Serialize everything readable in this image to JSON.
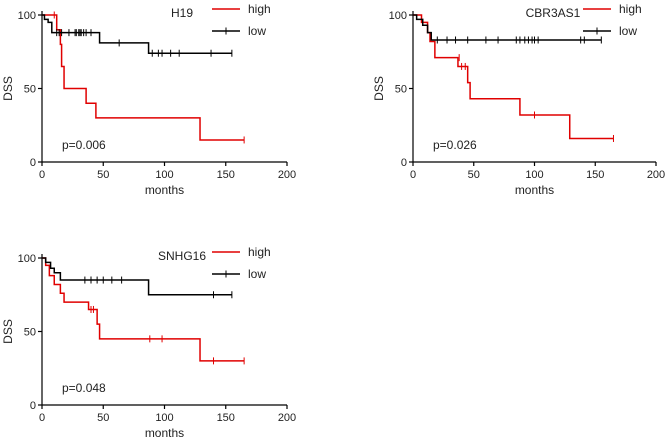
{
  "chart_data": [
    {
      "type": "line",
      "title": "H19",
      "xlabel": "months",
      "ylabel": "DSS",
      "xlim": [
        0,
        200
      ],
      "ylim": [
        0,
        100
      ],
      "xticks": [
        0,
        50,
        100,
        150,
        200
      ],
      "yticks": [
        0,
        50,
        100
      ],
      "pvalue": "p=0.006",
      "series": [
        {
          "name": "high",
          "color": "#e00000",
          "steps": [
            [
              0,
              100
            ],
            [
              7,
              100
            ],
            [
              10,
              100
            ],
            [
              12,
              90
            ],
            [
              15,
              80
            ],
            [
              16,
              65
            ],
            [
              18,
              50
            ],
            [
              35,
              50
            ],
            [
              36,
              40
            ],
            [
              43,
              40
            ],
            [
              44,
              30
            ],
            [
              128,
              30
            ],
            [
              129,
              15
            ],
            [
              165,
              15
            ]
          ],
          "censor": [
            [
              10,
              100
            ],
            [
              165,
              15
            ]
          ]
        },
        {
          "name": "low",
          "color": "#000000",
          "steps": [
            [
              0,
              100
            ],
            [
              2,
              97
            ],
            [
              5,
              95
            ],
            [
              8,
              88
            ],
            [
              46,
              88
            ],
            [
              47,
              81
            ],
            [
              86,
              81
            ],
            [
              87,
              74
            ],
            [
              155,
              74
            ]
          ],
          "censor": [
            [
              12,
              88
            ],
            [
              14,
              88
            ],
            [
              16,
              88
            ],
            [
              22,
              88
            ],
            [
              27,
              88
            ],
            [
              28,
              88
            ],
            [
              30,
              88
            ],
            [
              31,
              88
            ],
            [
              32,
              88
            ],
            [
              34,
              88
            ],
            [
              36,
              88
            ],
            [
              40,
              88
            ],
            [
              63,
              81
            ],
            [
              90,
              74
            ],
            [
              95,
              74
            ],
            [
              98,
              74
            ],
            [
              105,
              74
            ],
            [
              112,
              74
            ],
            [
              138,
              74
            ],
            [
              155,
              74
            ]
          ]
        }
      ]
    },
    {
      "type": "line",
      "title": "CBR3AS1",
      "xlabel": "months",
      "ylabel": "DSS",
      "xlim": [
        0,
        200
      ],
      "ylim": [
        0,
        100
      ],
      "xticks": [
        0,
        50,
        100,
        150,
        200
      ],
      "yticks": [
        0,
        50,
        100
      ],
      "pvalue": "p=0.026",
      "series": [
        {
          "name": "high",
          "color": "#e00000",
          "steps": [
            [
              0,
              100
            ],
            [
              5,
              100
            ],
            [
              7,
              95
            ],
            [
              12,
              88
            ],
            [
              14,
              82
            ],
            [
              18,
              71
            ],
            [
              35,
              71
            ],
            [
              37,
              65
            ],
            [
              43,
              65
            ],
            [
              45,
              54
            ],
            [
              47,
              43
            ],
            [
              87,
              43
            ],
            [
              88,
              32
            ],
            [
              128,
              32
            ],
            [
              129,
              16
            ],
            [
              165,
              16
            ]
          ],
          "censor": [
            [
              38,
              71
            ],
            [
              40,
              65
            ],
            [
              43,
              65
            ],
            [
              100,
              32
            ],
            [
              165,
              16
            ]
          ]
        },
        {
          "name": "low",
          "color": "#000000",
          "steps": [
            [
              0,
              100
            ],
            [
              3,
              97
            ],
            [
              8,
              93
            ],
            [
              12,
              88
            ],
            [
              15,
              83
            ],
            [
              155,
              83
            ]
          ],
          "censor": [
            [
              20,
              83
            ],
            [
              28,
              83
            ],
            [
              35,
              83
            ],
            [
              45,
              83
            ],
            [
              60,
              83
            ],
            [
              70,
              83
            ],
            [
              85,
              83
            ],
            [
              88,
              83
            ],
            [
              92,
              83
            ],
            [
              95,
              83
            ],
            [
              98,
              83
            ],
            [
              100,
              83
            ],
            [
              103,
              83
            ],
            [
              138,
              83
            ],
            [
              141,
              83
            ],
            [
              155,
              83
            ]
          ]
        }
      ]
    },
    {
      "type": "line",
      "title": "SNHG16",
      "xlabel": "months",
      "ylabel": "DSS",
      "xlim": [
        0,
        200
      ],
      "ylim": [
        0,
        100
      ],
      "xticks": [
        0,
        50,
        100,
        150,
        200
      ],
      "yticks": [
        0,
        50,
        100
      ],
      "pvalue": "p=0.048",
      "series": [
        {
          "name": "high",
          "color": "#e00000",
          "steps": [
            [
              0,
              100
            ],
            [
              3,
              95
            ],
            [
              6,
              88
            ],
            [
              10,
              82
            ],
            [
              15,
              76
            ],
            [
              18,
              70
            ],
            [
              36,
              70
            ],
            [
              38,
              65
            ],
            [
              44,
              65
            ],
            [
              45,
              55
            ],
            [
              47,
              45
            ],
            [
              128,
              45
            ],
            [
              129,
              30
            ],
            [
              165,
              30
            ]
          ],
          "censor": [
            [
              40,
              65
            ],
            [
              42,
              65
            ],
            [
              88,
              45
            ],
            [
              98,
              45
            ],
            [
              140,
              30
            ],
            [
              165,
              30
            ]
          ]
        },
        {
          "name": "low",
          "color": "#000000",
          "steps": [
            [
              0,
              100
            ],
            [
              3,
              97
            ],
            [
              7,
              93
            ],
            [
              10,
              90
            ],
            [
              15,
              85
            ],
            [
              86,
              85
            ],
            [
              87,
              75
            ],
            [
              155,
              75
            ]
          ],
          "censor": [
            [
              35,
              85
            ],
            [
              40,
              85
            ],
            [
              45,
              85
            ],
            [
              50,
              85
            ],
            [
              57,
              85
            ],
            [
              65,
              85
            ],
            [
              140,
              75
            ],
            [
              155,
              75
            ]
          ]
        }
      ]
    }
  ],
  "legend": {
    "high": "high",
    "low": "low"
  }
}
